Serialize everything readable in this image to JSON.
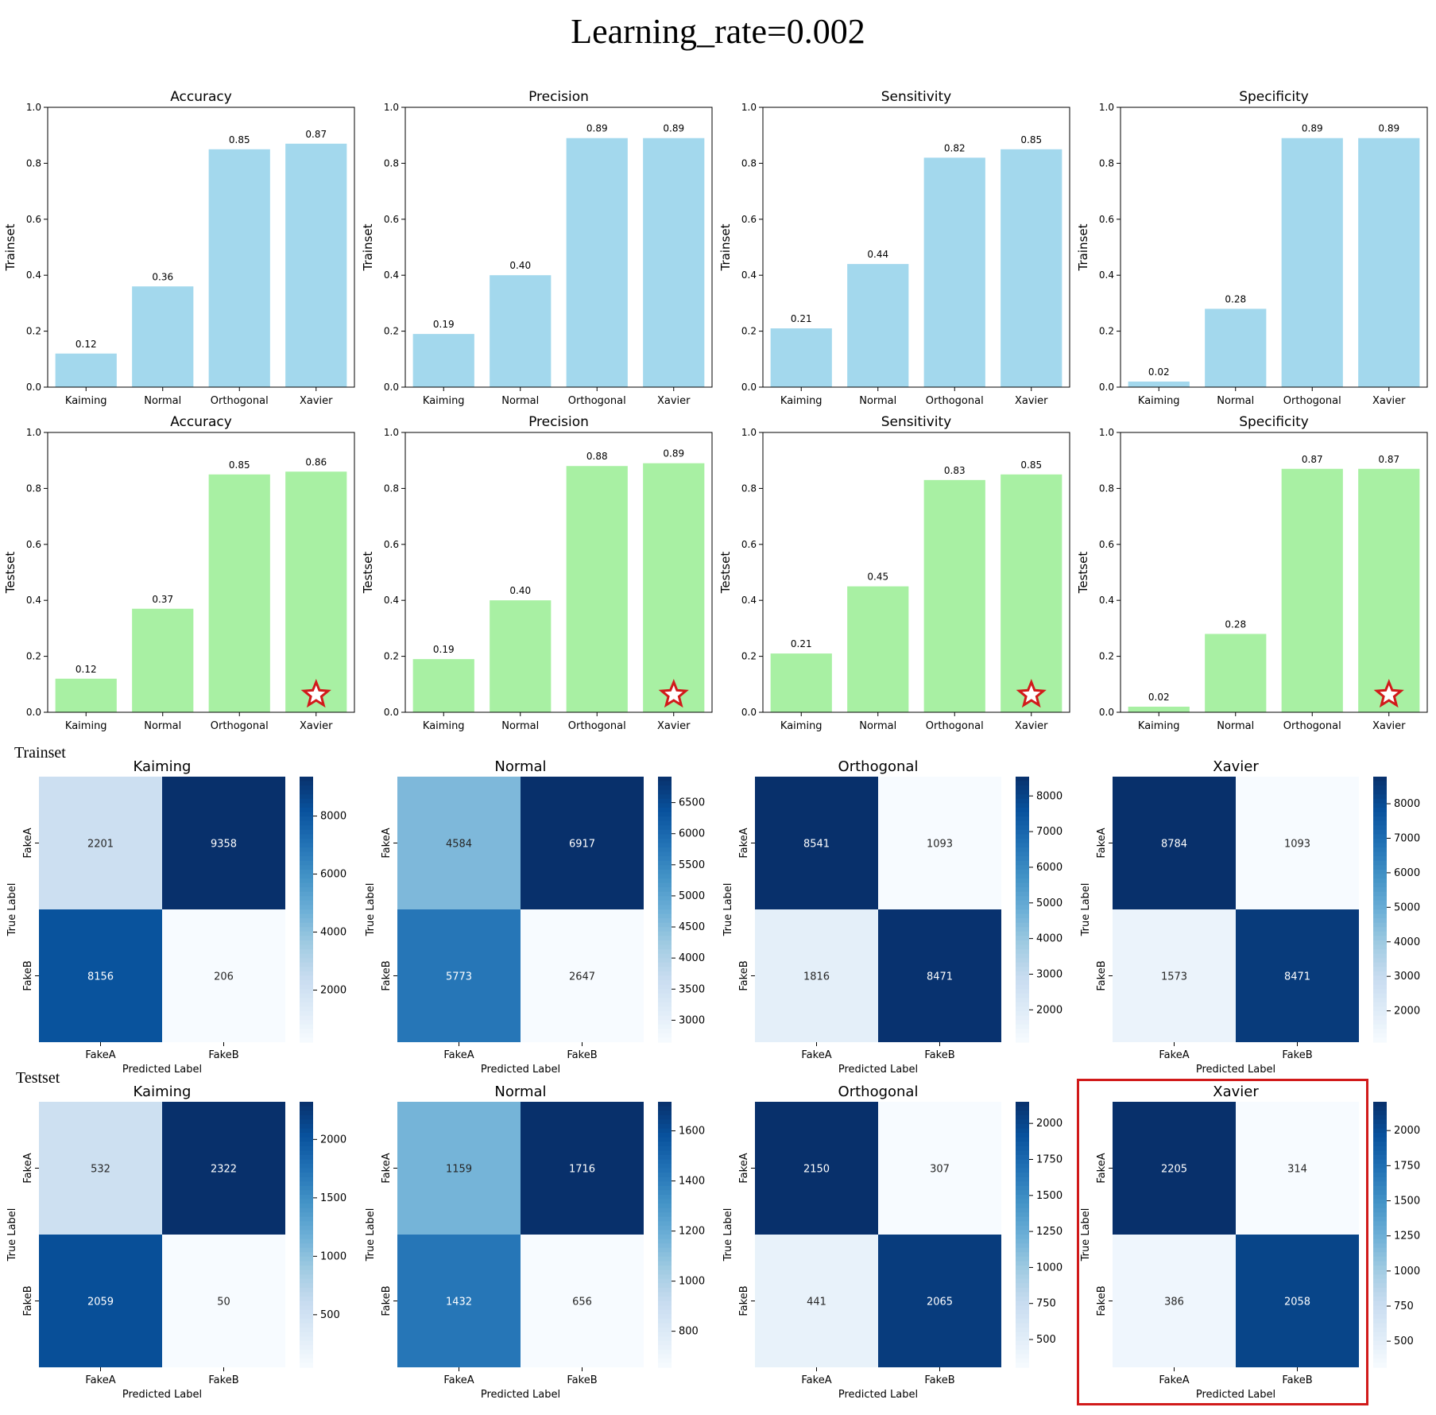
{
  "page_title": "Learning_rate=0.002",
  "section_labels": {
    "trainset": "Trainset",
    "testset": "Testset"
  },
  "colors": {
    "train_bar": "#a3d8ed",
    "test_bar": "#a8f0a3",
    "star": "#d11a1a",
    "highlight": "#d11a1a",
    "cmap_light": "#f7fbff",
    "cmap_dark": "#08306b"
  },
  "chart_data": [
    {
      "type": "bar",
      "id": "train-accuracy",
      "title": "Accuracy",
      "ylabel": "Trainset",
      "categories": [
        "Kaiming",
        "Normal",
        "Orthogonal",
        "Xavier"
      ],
      "values": [
        0.12,
        0.36,
        0.85,
        0.87
      ],
      "labels": [
        "0.12",
        "0.36",
        "0.85",
        "0.87"
      ],
      "ylim": [
        0,
        1
      ],
      "yticks": [
        "0.0",
        "0.2",
        "0.4",
        "0.6",
        "0.8",
        "1.0"
      ],
      "color": "#a3d8ed",
      "star": null
    },
    {
      "type": "bar",
      "id": "train-precision",
      "title": "Precision",
      "ylabel": "Trainset",
      "categories": [
        "Kaiming",
        "Normal",
        "Orthogonal",
        "Xavier"
      ],
      "values": [
        0.19,
        0.4,
        0.89,
        0.89
      ],
      "labels": [
        "0.19",
        "0.40",
        "0.89",
        "0.89"
      ],
      "ylim": [
        0,
        1
      ],
      "yticks": [
        "0.0",
        "0.2",
        "0.4",
        "0.6",
        "0.8",
        "1.0"
      ],
      "color": "#a3d8ed",
      "star": null
    },
    {
      "type": "bar",
      "id": "train-sensitivity",
      "title": "Sensitivity",
      "ylabel": "Trainset",
      "categories": [
        "Kaiming",
        "Normal",
        "Orthogonal",
        "Xavier"
      ],
      "values": [
        0.21,
        0.44,
        0.82,
        0.85
      ],
      "labels": [
        "0.21",
        "0.44",
        "0.82",
        "0.85"
      ],
      "ylim": [
        0,
        1
      ],
      "yticks": [
        "0.0",
        "0.2",
        "0.4",
        "0.6",
        "0.8",
        "1.0"
      ],
      "color": "#a3d8ed",
      "star": null
    },
    {
      "type": "bar",
      "id": "train-specificity",
      "title": "Specificity",
      "ylabel": "Trainset",
      "categories": [
        "Kaiming",
        "Normal",
        "Orthogonal",
        "Xavier"
      ],
      "values": [
        0.02,
        0.28,
        0.89,
        0.89
      ],
      "labels": [
        "0.02",
        "0.28",
        "0.89",
        "0.89"
      ],
      "ylim": [
        0,
        1
      ],
      "yticks": [
        "0.0",
        "0.2",
        "0.4",
        "0.6",
        "0.8",
        "1.0"
      ],
      "color": "#a3d8ed",
      "star": null
    },
    {
      "type": "bar",
      "id": "test-accuracy",
      "title": "Accuracy",
      "ylabel": "Testset",
      "categories": [
        "Kaiming",
        "Normal",
        "Orthogonal",
        "Xavier"
      ],
      "values": [
        0.12,
        0.37,
        0.85,
        0.86
      ],
      "labels": [
        "0.12",
        "0.37",
        "0.85",
        "0.86"
      ],
      "ylim": [
        0,
        1
      ],
      "yticks": [
        "0.0",
        "0.2",
        "0.4",
        "0.6",
        "0.8",
        "1.0"
      ],
      "color": "#a8f0a3",
      "star": "Xavier"
    },
    {
      "type": "bar",
      "id": "test-precision",
      "title": "Precision",
      "ylabel": "Testset",
      "categories": [
        "Kaiming",
        "Normal",
        "Orthogonal",
        "Xavier"
      ],
      "values": [
        0.19,
        0.4,
        0.88,
        0.89
      ],
      "labels": [
        "0.19",
        "0.40",
        "0.88",
        "0.89"
      ],
      "ylim": [
        0,
        1
      ],
      "yticks": [
        "0.0",
        "0.2",
        "0.4",
        "0.6",
        "0.8",
        "1.0"
      ],
      "color": "#a8f0a3",
      "star": "Xavier"
    },
    {
      "type": "bar",
      "id": "test-sensitivity",
      "title": "Sensitivity",
      "ylabel": "Testset",
      "categories": [
        "Kaiming",
        "Normal",
        "Orthogonal",
        "Xavier"
      ],
      "values": [
        0.21,
        0.45,
        0.83,
        0.85
      ],
      "labels": [
        "0.21",
        "0.45",
        "0.83",
        "0.85"
      ],
      "ylim": [
        0,
        1
      ],
      "yticks": [
        "0.0",
        "0.2",
        "0.4",
        "0.6",
        "0.8",
        "1.0"
      ],
      "color": "#a8f0a3",
      "star": "Xavier"
    },
    {
      "type": "bar",
      "id": "test-specificity",
      "title": "Specificity",
      "ylabel": "Testset",
      "categories": [
        "Kaiming",
        "Normal",
        "Orthogonal",
        "Xavier"
      ],
      "values": [
        0.02,
        0.28,
        0.87,
        0.87
      ],
      "labels": [
        "0.02",
        "0.28",
        "0.87",
        "0.87"
      ],
      "ylim": [
        0,
        1
      ],
      "yticks": [
        "0.0",
        "0.2",
        "0.4",
        "0.6",
        "0.8",
        "1.0"
      ],
      "color": "#a8f0a3",
      "star": "Xavier"
    },
    {
      "type": "heatmap",
      "id": "train-cm-kaiming",
      "section": "Trainset",
      "title": "Kaiming",
      "xlabel": "Predicted Label",
      "ylabel": "True Label",
      "x_categories": [
        "FakeA",
        "FakeB"
      ],
      "y_categories": [
        "FakeA",
        "FakeB"
      ],
      "values": [
        [
          2201,
          9358
        ],
        [
          8156,
          206
        ]
      ],
      "colorbar_range": [
        206,
        9358
      ],
      "colorbar_ticks": [
        2000,
        4000,
        6000,
        8000
      ]
    },
    {
      "type": "heatmap",
      "id": "train-cm-normal",
      "section": "Trainset",
      "title": "Normal",
      "xlabel": "Predicted Label",
      "ylabel": "True Label",
      "x_categories": [
        "FakeA",
        "FakeB"
      ],
      "y_categories": [
        "FakeA",
        "FakeB"
      ],
      "values": [
        [
          4584,
          6917
        ],
        [
          5773,
          2647
        ]
      ],
      "colorbar_range": [
        2647,
        6917
      ],
      "colorbar_ticks": [
        3000,
        3500,
        4000,
        4500,
        5000,
        5500,
        6000,
        6500
      ]
    },
    {
      "type": "heatmap",
      "id": "train-cm-orthogonal",
      "section": "Trainset",
      "title": "Orthogonal",
      "xlabel": "Predicted Label",
      "ylabel": "True Label",
      "x_categories": [
        "FakeA",
        "FakeB"
      ],
      "y_categories": [
        "FakeA",
        "FakeB"
      ],
      "values": [
        [
          8541,
          1093
        ],
        [
          1816,
          8471
        ]
      ],
      "colorbar_range": [
        1093,
        8541
      ],
      "colorbar_ticks": [
        2000,
        3000,
        4000,
        5000,
        6000,
        7000,
        8000
      ]
    },
    {
      "type": "heatmap",
      "id": "train-cm-xavier",
      "section": "Trainset",
      "title": "Xavier",
      "xlabel": "Predicted Label",
      "ylabel": "True Label",
      "x_categories": [
        "FakeA",
        "FakeB"
      ],
      "y_categories": [
        "FakeA",
        "FakeB"
      ],
      "values": [
        [
          8784,
          1093
        ],
        [
          1573,
          8471
        ]
      ],
      "colorbar_range": [
        1093,
        8784
      ],
      "colorbar_ticks": [
        2000,
        3000,
        4000,
        5000,
        6000,
        7000,
        8000
      ]
    },
    {
      "type": "heatmap",
      "id": "test-cm-kaiming",
      "section": "Testset",
      "title": "Kaiming",
      "xlabel": "Predicted Label",
      "ylabel": "True Label",
      "x_categories": [
        "FakeA",
        "FakeB"
      ],
      "y_categories": [
        "FakeA",
        "FakeB"
      ],
      "values": [
        [
          532,
          2322
        ],
        [
          2059,
          50
        ]
      ],
      "colorbar_range": [
        50,
        2322
      ],
      "colorbar_ticks": [
        500,
        1000,
        1500,
        2000
      ]
    },
    {
      "type": "heatmap",
      "id": "test-cm-normal",
      "section": "Testset",
      "title": "Normal",
      "xlabel": "Predicted Label",
      "ylabel": "True Label",
      "x_categories": [
        "FakeA",
        "FakeB"
      ],
      "y_categories": [
        "FakeA",
        "FakeB"
      ],
      "values": [
        [
          1159,
          1716
        ],
        [
          1432,
          656
        ]
      ],
      "colorbar_range": [
        656,
        1716
      ],
      "colorbar_ticks": [
        800,
        1000,
        1200,
        1400,
        1600
      ]
    },
    {
      "type": "heatmap",
      "id": "test-cm-orthogonal",
      "section": "Testset",
      "title": "Orthogonal",
      "xlabel": "Predicted Label",
      "ylabel": "True Label",
      "x_categories": [
        "FakeA",
        "FakeB"
      ],
      "y_categories": [
        "FakeA",
        "FakeB"
      ],
      "values": [
        [
          2150,
          307
        ],
        [
          441,
          2065
        ]
      ],
      "colorbar_range": [
        307,
        2150
      ],
      "colorbar_ticks": [
        500,
        750,
        1000,
        1250,
        1500,
        1750,
        2000
      ]
    },
    {
      "type": "heatmap",
      "id": "test-cm-xavier",
      "section": "Testset",
      "title": "Xavier",
      "xlabel": "Predicted Label",
      "ylabel": "True Label",
      "x_categories": [
        "FakeA",
        "FakeB"
      ],
      "y_categories": [
        "FakeA",
        "FakeB"
      ],
      "values": [
        [
          2205,
          314
        ],
        [
          386,
          2058
        ]
      ],
      "colorbar_range": [
        314,
        2205
      ],
      "colorbar_ticks": [
        500,
        750,
        1000,
        1250,
        1500,
        1750,
        2000
      ],
      "highlighted": true
    }
  ]
}
